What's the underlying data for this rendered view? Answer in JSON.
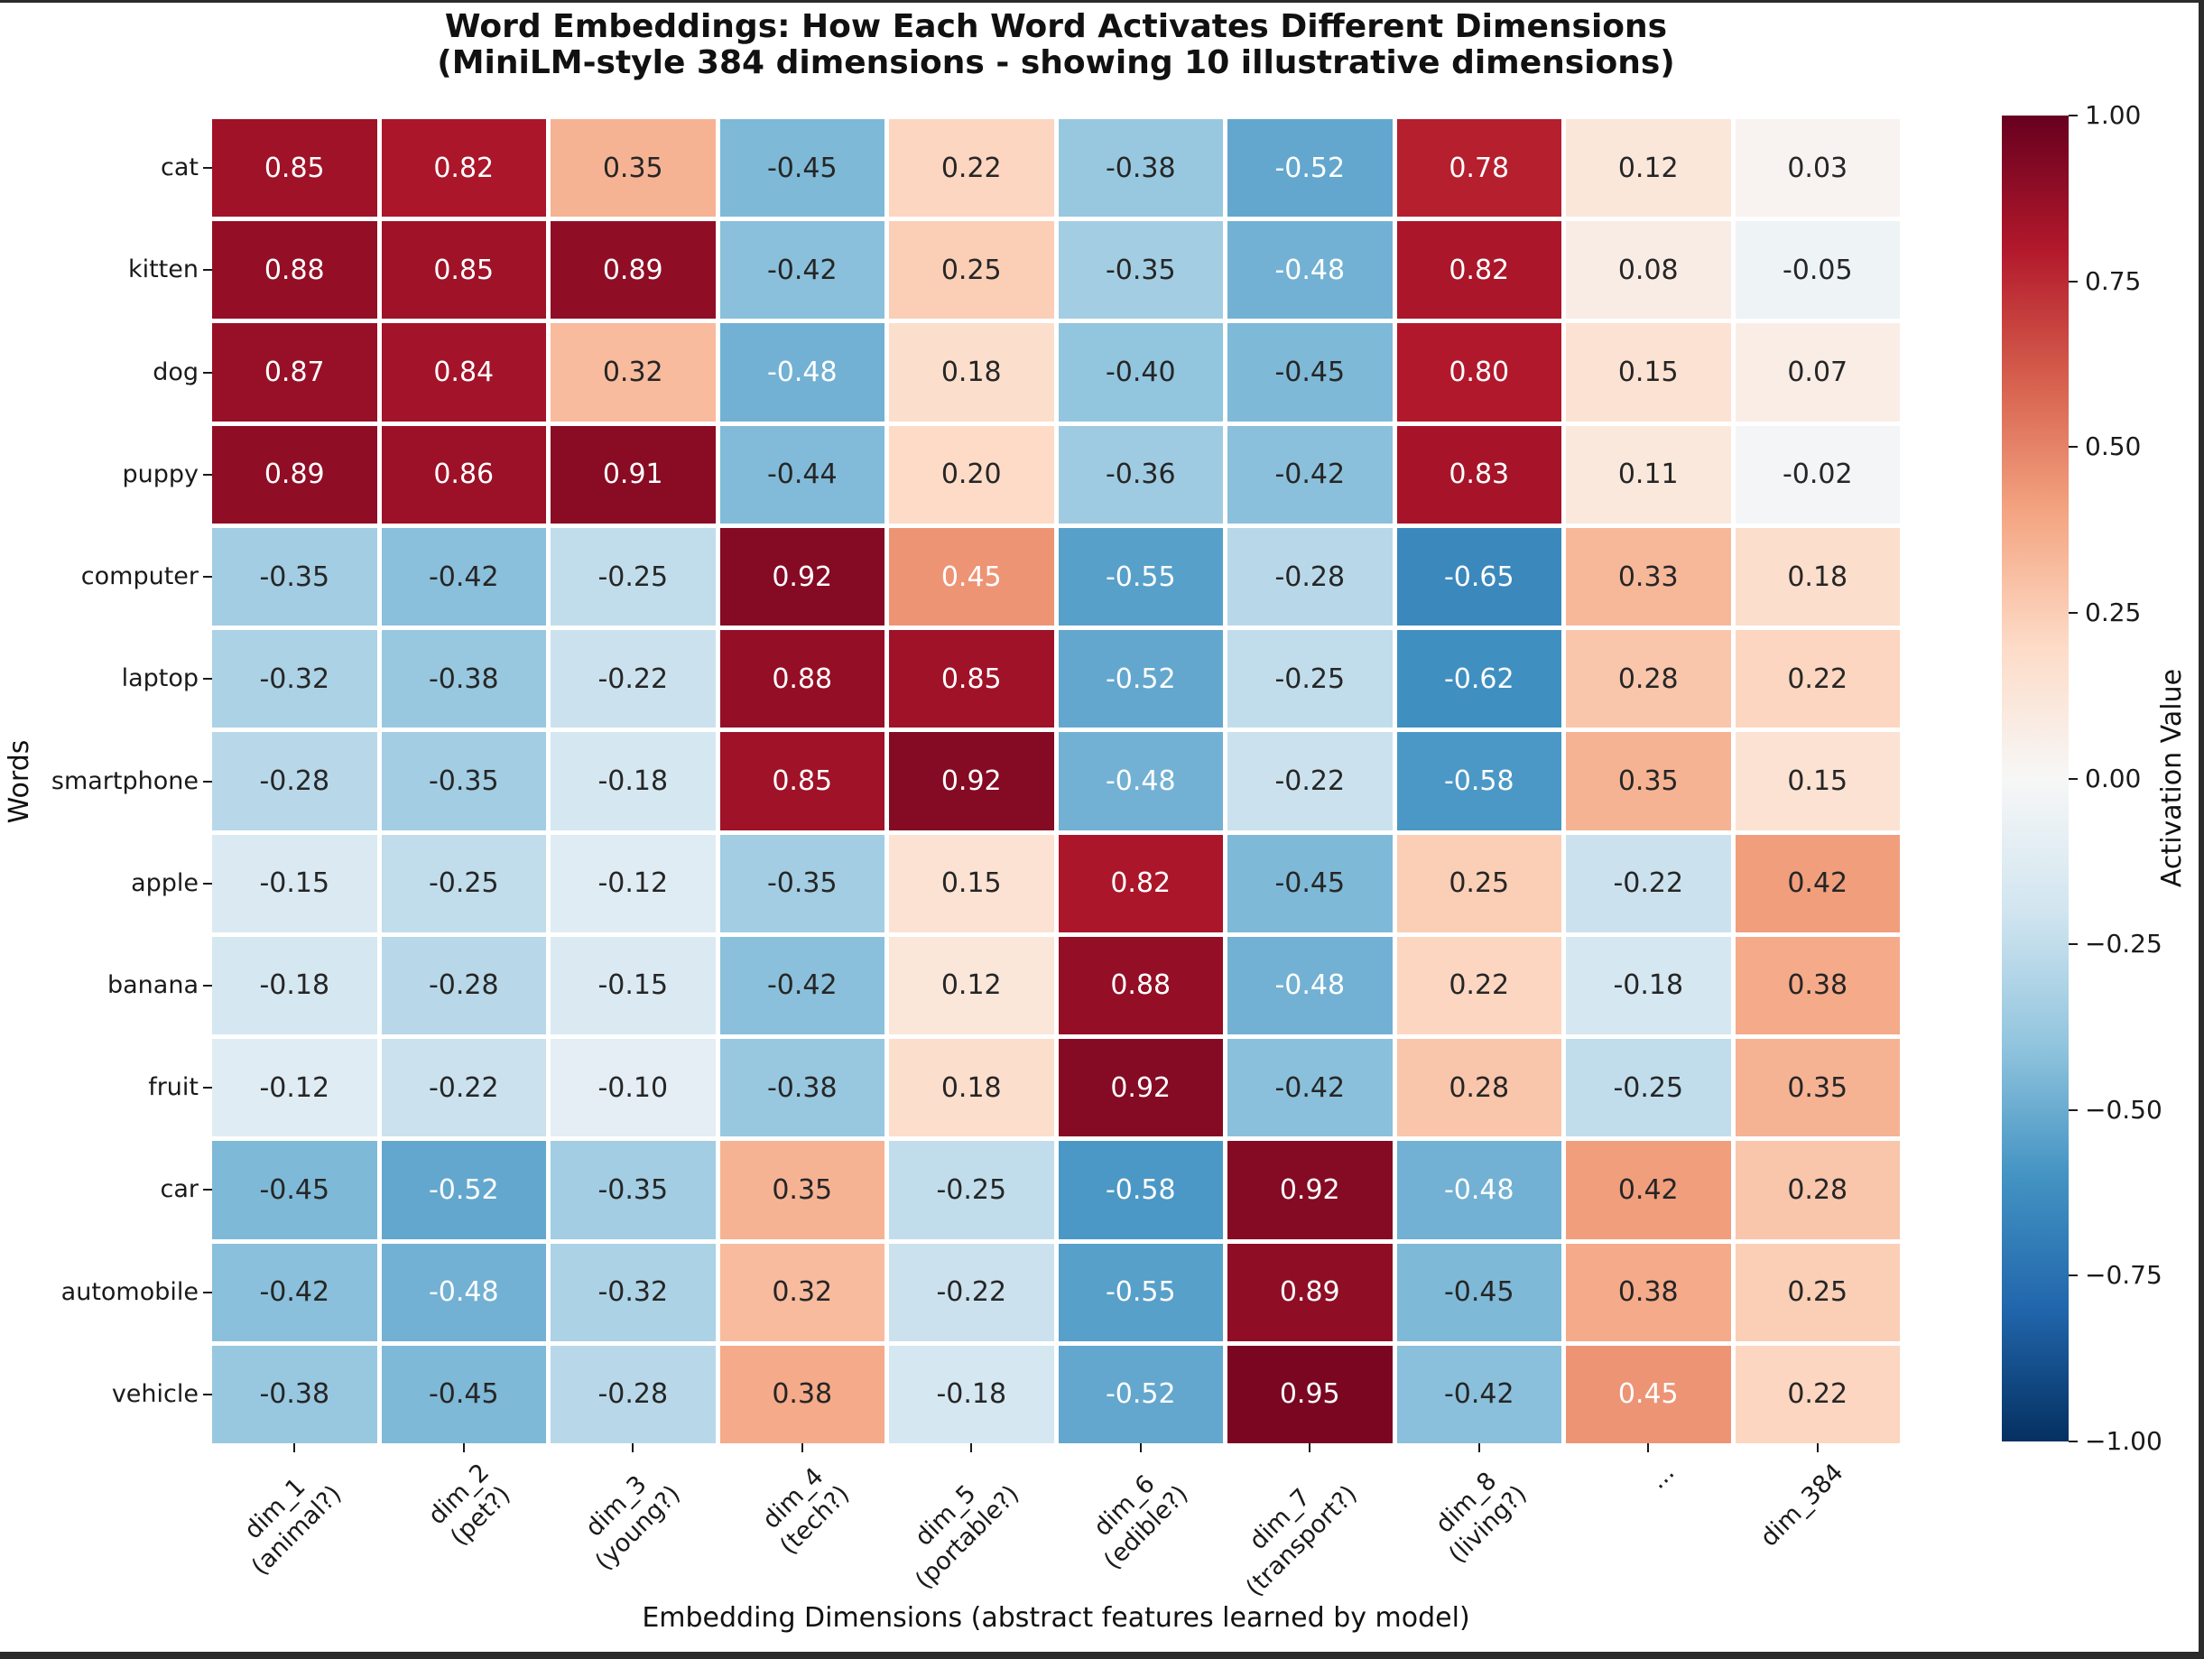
{
  "window": {
    "border_color": "#2b2b2b"
  },
  "chart_data": {
    "type": "heatmap",
    "title": "Word Embeddings: How Each Word Activates Different Dimensions",
    "subtitle": "(MiniLM-style 384 dimensions - showing 10 illustrative dimensions)",
    "xlabel": "Embedding Dimensions (abstract features learned by model)",
    "ylabel": "Words",
    "x_categories": [
      {
        "line1": "dim_1",
        "line2": "(animal?)"
      },
      {
        "line1": "dim_2",
        "line2": "(pet?)"
      },
      {
        "line1": "dim_3",
        "line2": "(young?)"
      },
      {
        "line1": "dim_4",
        "line2": "(tech?)"
      },
      {
        "line1": "dim_5",
        "line2": "(portable?)"
      },
      {
        "line1": "dim_6",
        "line2": "(edible?)"
      },
      {
        "line1": "dim_7",
        "line2": "(transport?)"
      },
      {
        "line1": "dim_8",
        "line2": "(living?)"
      },
      {
        "line1": "...",
        "line2": ""
      },
      {
        "line1": "dim_384",
        "line2": ""
      }
    ],
    "y_categories": [
      "cat",
      "kitten",
      "dog",
      "puppy",
      "computer",
      "laptop",
      "smartphone",
      "apple",
      "banana",
      "fruit",
      "car",
      "automobile",
      "vehicle"
    ],
    "values": [
      [
        0.85,
        0.82,
        0.35,
        -0.45,
        0.22,
        -0.38,
        -0.52,
        0.78,
        0.12,
        0.03
      ],
      [
        0.88,
        0.85,
        0.89,
        -0.42,
        0.25,
        -0.35,
        -0.48,
        0.82,
        0.08,
        -0.05
      ],
      [
        0.87,
        0.84,
        0.32,
        -0.48,
        0.18,
        -0.4,
        -0.45,
        0.8,
        0.15,
        0.07
      ],
      [
        0.89,
        0.86,
        0.91,
        -0.44,
        0.2,
        -0.36,
        -0.42,
        0.83,
        0.11,
        -0.02
      ],
      [
        -0.35,
        -0.42,
        -0.25,
        0.92,
        0.45,
        -0.55,
        -0.28,
        -0.65,
        0.33,
        0.18
      ],
      [
        -0.32,
        -0.38,
        -0.22,
        0.88,
        0.85,
        -0.52,
        -0.25,
        -0.62,
        0.28,
        0.22
      ],
      [
        -0.28,
        -0.35,
        -0.18,
        0.85,
        0.92,
        -0.48,
        -0.22,
        -0.58,
        0.35,
        0.15
      ],
      [
        -0.15,
        -0.25,
        -0.12,
        -0.35,
        0.15,
        0.82,
        -0.45,
        0.25,
        -0.22,
        0.42
      ],
      [
        -0.18,
        -0.28,
        -0.15,
        -0.42,
        0.12,
        0.88,
        -0.48,
        0.22,
        -0.18,
        0.38
      ],
      [
        -0.12,
        -0.22,
        -0.1,
        -0.38,
        0.18,
        0.92,
        -0.42,
        0.28,
        -0.25,
        0.35
      ],
      [
        -0.45,
        -0.52,
        -0.35,
        0.35,
        -0.25,
        -0.58,
        0.92,
        -0.48,
        0.42,
        0.28
      ],
      [
        -0.42,
        -0.48,
        -0.32,
        0.32,
        -0.22,
        -0.55,
        0.89,
        -0.45,
        0.38,
        0.25
      ],
      [
        -0.38,
        -0.45,
        -0.28,
        0.38,
        -0.18,
        -0.52,
        0.95,
        -0.42,
        0.45,
        0.22
      ]
    ],
    "vmin": -1,
    "vmax": 1,
    "colormap": "RdBu_r",
    "colormap_stops": [
      {
        "v": -1.0,
        "c": "#053061"
      },
      {
        "v": -0.8,
        "c": "#2166ac"
      },
      {
        "v": -0.6,
        "c": "#4393c3"
      },
      {
        "v": -0.4,
        "c": "#92c5de"
      },
      {
        "v": -0.2,
        "c": "#d1e5f0"
      },
      {
        "v": 0.0,
        "c": "#f7f7f7"
      },
      {
        "v": 0.2,
        "c": "#fddbc7"
      },
      {
        "v": 0.4,
        "c": "#f4a582"
      },
      {
        "v": 0.6,
        "c": "#d6604d"
      },
      {
        "v": 0.8,
        "c": "#b2182b"
      },
      {
        "v": 1.0,
        "c": "#67001f"
      }
    ],
    "annotation_format": ".2f",
    "annotation_colors": {
      "light": "#ffffff",
      "dark": "#262626"
    },
    "grid_line_color": "#ffffff",
    "legend_position": "right",
    "colorbar": {
      "label": "Activation Value",
      "tick_labels": [
        "1.00",
        "0.75",
        "0.50",
        "0.25",
        "0.00",
        "−0.25",
        "−0.50",
        "−0.75",
        "−1.00"
      ]
    }
  }
}
